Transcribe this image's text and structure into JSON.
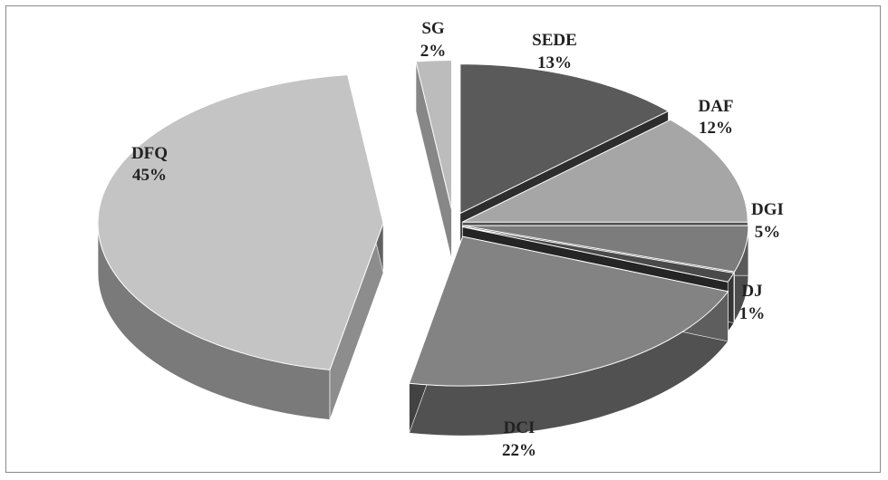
{
  "chart_data": {
    "type": "pie",
    "style": "3d-exploded",
    "start_angle": 0,
    "direction": "clockwise",
    "slices": [
      {
        "label": "SEDE",
        "value": 13,
        "display": "13%",
        "color": "#5a5a5a",
        "label_pos": "top"
      },
      {
        "label": "DAF",
        "value": 12,
        "display": "12%",
        "color": "#a6a6a6",
        "label_pos": "right"
      },
      {
        "label": "DGI",
        "value": 5,
        "display": "5%",
        "color": "#7c7c7c",
        "label_pos": "right"
      },
      {
        "label": "DJ",
        "value": 1,
        "display": "1%",
        "color": "#4a4a4a",
        "label_pos": "right"
      },
      {
        "label": "DCI",
        "value": 22,
        "display": "22%",
        "color": "#838383",
        "label_pos": "bottom"
      },
      {
        "label": "DFQ",
        "value": 45,
        "display": "45%",
        "color": "#c4c4c4",
        "label_pos": "left"
      },
      {
        "label": "SG",
        "value": 2,
        "display": "2%",
        "color": "#bcbcbc",
        "label_pos": "top"
      }
    ]
  }
}
